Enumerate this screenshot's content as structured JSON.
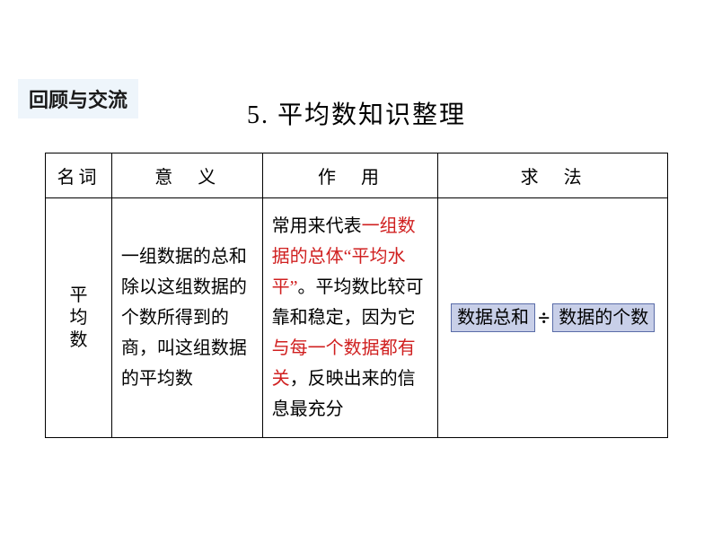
{
  "section_tag": "回顾与交流",
  "title": "5. 平均数知识整理",
  "table": {
    "headers": {
      "term": "名词",
      "meaning": "意　义",
      "use": "作　用",
      "method": "求　法"
    },
    "row": {
      "term": "平均数",
      "meaning": "一组数据的总和除以这组数据的个数所得到的商，叫这组数据的平均数",
      "use_p1": "常用来代表",
      "use_h1": "一组数据的总体“平均水平”",
      "use_p2": "。平均数比较可靠和稳定，因为它",
      "use_h2": "与每一个数据都有关",
      "use_p3": "，反映出来的信息最充分",
      "method_box1": "数据总和",
      "method_op": "÷",
      "method_box2": "数据的个数"
    }
  },
  "colors": {
    "tag_bg": "#eef5fb",
    "box_bg": "#c8cfe8",
    "box_border": "#5a6ca8",
    "highlight": "#d02020",
    "text": "#000000",
    "page_bg": "#ffffff"
  }
}
